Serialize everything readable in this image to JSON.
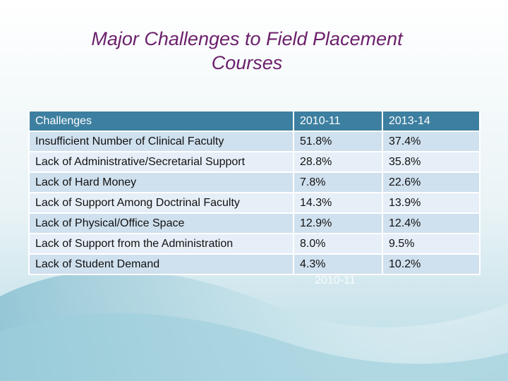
{
  "slide": {
    "title_line1": "Major Challenges to Field Placement",
    "title_line2": "Courses",
    "ghost_label": "2010-11"
  },
  "table": {
    "headers": [
      "Challenges",
      "2010-11",
      "2013-14"
    ],
    "rows": [
      [
        "Insufficient Number of Clinical Faculty",
        "51.8%",
        "37.4%"
      ],
      [
        "Lack of Administrative/Secretarial Support",
        "28.8%",
        "35.8%"
      ],
      [
        "Lack of Hard Money",
        "7.8%",
        "22.6%"
      ],
      [
        "Lack of Support Among Doctrinal Faculty",
        "14.3%",
        "13.9%"
      ],
      [
        "Lack of Physical/Office Space",
        "12.9%",
        "12.4%"
      ],
      [
        "Lack of Support from the Administration",
        "8.0%",
        "9.5%"
      ],
      [
        "Lack of Student Demand",
        "4.3%",
        "10.2%"
      ]
    ]
  },
  "colors": {
    "title": "#6b1f6b",
    "header_bg": "#3d7fa0",
    "row_dark": "#cfe0ee",
    "row_light": "#e6eff7",
    "wave": "#8fc3d3"
  }
}
